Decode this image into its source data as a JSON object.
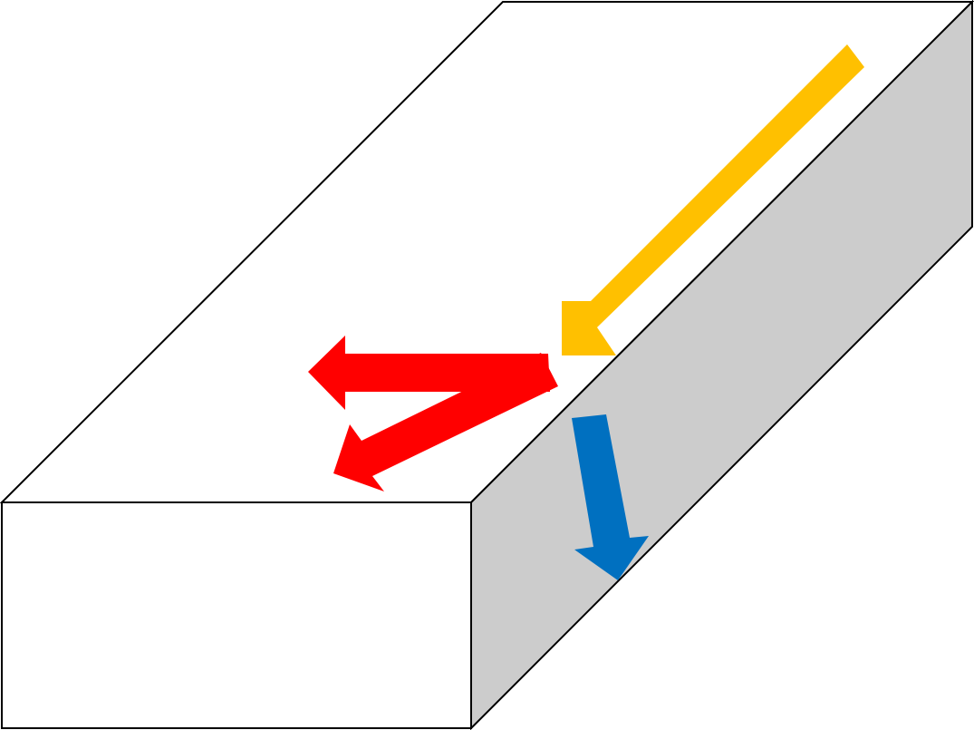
{
  "colors": {
    "background": "#ffffff",
    "top_face": "#ffffff",
    "front_face": "#ffffff",
    "side_face": "#cccccc",
    "edges": "#000000",
    "incident_arrow": "#ffc000",
    "reflected_arrows": "#ff0000",
    "transmitted_arrow": "#0070c0"
  },
  "icons": {
    "incident": "arrow-down-left-icon",
    "reflected_horizontal": "arrow-left-icon",
    "reflected_oblique": "arrow-down-left-icon",
    "transmitted": "arrow-down-icon"
  }
}
